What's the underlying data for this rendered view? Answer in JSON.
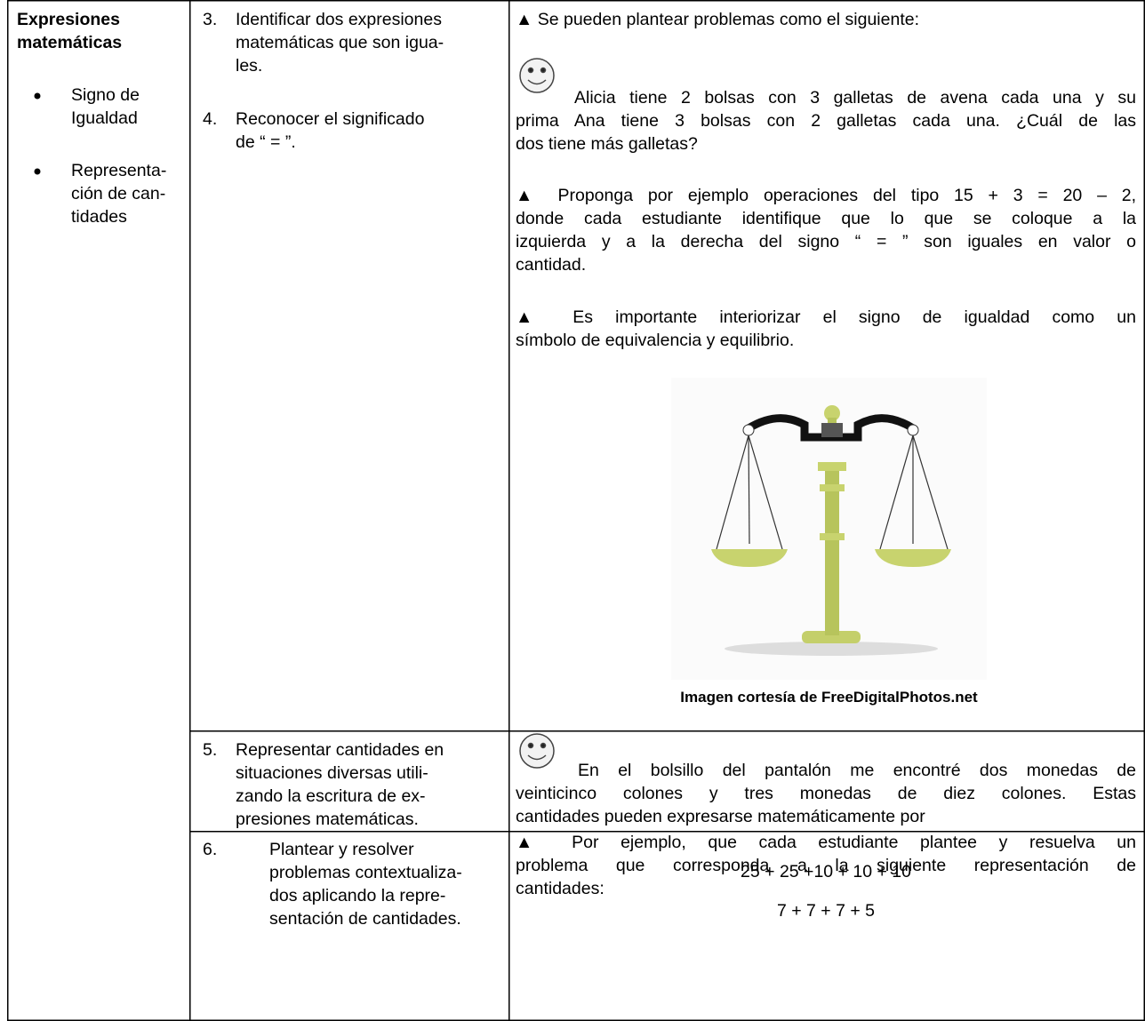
{
  "column1": {
    "title": [
      "Expresiones",
      "matemáticas"
    ],
    "bullets": [
      [
        "Signo de",
        "Igualdad"
      ],
      [
        "Representa-",
        "ción de can-",
        "tidades"
      ]
    ]
  },
  "rows": [
    {
      "objectives": [
        {
          "number": "3.",
          "lines": [
            "Identificar dos expresiones",
            "matemáticas que son igua-",
            "les."
          ]
        },
        {
          "number": "4.",
          "lines": [
            "Reconocer el significado",
            "de “ = ”."
          ]
        }
      ],
      "activities": [
        {
          "lines": [
            "▲ Se pueden plantear problemas como el siguiente:"
          ]
        },
        {
          "lines": [
            "Alicia tiene 2 bolsas con 3 galletas de avena cada una y su",
            "prima Ana tiene 3 bolsas con 2 galletas cada una. ¿Cuál de las",
            "dos tiene más galletas?"
          ]
        },
        {
          "lines": [
            "▲ Proponga por ejemplo operaciones del tipo 15 + 3 = 20 – 2,",
            "donde cada estudiante identifique que lo que se coloque a la",
            "izquierda y a la derecha del signo “ = ” son iguales en valor o",
            "cantidad."
          ]
        },
        {
          "lines": [
            "▲ Es importante interiorizar el signo de igualdad como un",
            "símbolo de equivalencia y equilibrio."
          ]
        }
      ],
      "image_caption": "Imagen cortesía de FreeDigitalPhotos.net"
    },
    {
      "objectives": [
        {
          "number": "5.",
          "lines": [
            "Representar cantidades en",
            "situaciones diversas utili-",
            "zando la escritura de ex-",
            "presiones matemáticas."
          ]
        }
      ],
      "activities": [
        {
          "lines": [
            "En el bolsillo del pantalón me encontré dos monedas de",
            "veinticinco colones y tres monedas de diez colones. Estas",
            "cantidades pueden expresarse matemáticamente por"
          ]
        },
        {
          "lines": [
            "25 + 25 +10 + 10 + 10"
          ]
        }
      ]
    },
    {
      "objectives": [
        {
          "number": "6.",
          "lines": [
            "Plantear y resolver",
            "problemas contextualiza-",
            "dos aplicando la repre-",
            "sentación de cantidades."
          ]
        }
      ],
      "activities": [
        {
          "lines": [
            "▲ Por ejemplo, que cada estudiante plantee y resuelva un",
            "problema que corresponda a la siguiente representación de",
            "cantidades:"
          ]
        },
        {
          "lines": [
            "7 + 7 + 7 + 5"
          ]
        }
      ]
    }
  ]
}
